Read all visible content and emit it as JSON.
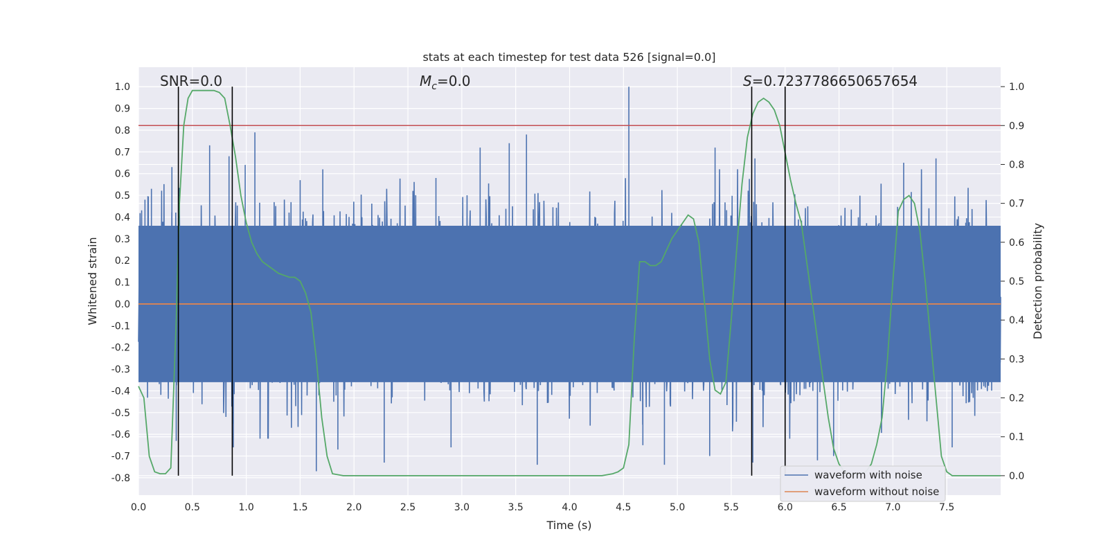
{
  "chart_data": {
    "type": "line",
    "title": "stats at each timestep for test data 526 [signal=0.0]",
    "xlabel": "Time (s)",
    "ylabel": "Whitened strain",
    "y2label": "Detection probability",
    "xlim": [
      0,
      8
    ],
    "ylim": [
      -0.88,
      1.09
    ],
    "y2lim": [
      -0.05,
      1.05
    ],
    "xticks": [
      "0.0",
      "0.5",
      "1.0",
      "1.5",
      "2.0",
      "2.5",
      "3.0",
      "3.5",
      "4.0",
      "4.5",
      "5.0",
      "5.5",
      "6.0",
      "6.5",
      "7.0",
      "7.5"
    ],
    "yticks": [
      "1.0",
      "0.9",
      "0.8",
      "0.7",
      "0.6",
      "0.5",
      "0.4",
      "0.3",
      "0.2",
      "0.1",
      "0.0",
      "-0.1",
      "-0.2",
      "-0.3",
      "-0.4",
      "-0.5",
      "-0.6",
      "-0.7",
      "-0.8"
    ],
    "y2ticks": [
      "1.0",
      "0.9",
      "0.8",
      "0.7",
      "0.6",
      "0.5",
      "0.4",
      "0.3",
      "0.2",
      "0.1",
      "0.0"
    ],
    "grid": true,
    "legend_position": "lower-right",
    "annotations": {
      "snr_label": "SNR=0.0",
      "mc_label_italic": "M",
      "mc_label_sub": "c",
      "mc_label_value": "=0.0",
      "s_label_italic": "S",
      "s_label_value": "=0.7237786650657654"
    },
    "threshold": 0.9,
    "detection_windows": [
      [
        0.37,
        0.87
      ],
      [
        5.69,
        6.0
      ]
    ],
    "series": [
      {
        "name": "waveform with noise",
        "color": "#4c72b0",
        "kind": "noise",
        "envelope_typical": [
          -0.45,
          0.45
        ],
        "spikes": [
          {
            "t": 0.06,
            "y": 0.48
          },
          {
            "t": 0.12,
            "y": 0.53
          },
          {
            "t": 0.31,
            "y": 0.63
          },
          {
            "t": 0.66,
            "y": 0.73
          },
          {
            "t": 0.84,
            "y": 0.68
          },
          {
            "t": 0.99,
            "y": 0.64
          },
          {
            "t": 1.08,
            "y": 0.79
          },
          {
            "t": 1.5,
            "y": 0.57
          },
          {
            "t": 1.71,
            "y": 0.62
          },
          {
            "t": 2.76,
            "y": 0.58
          },
          {
            "t": 3.17,
            "y": 0.72
          },
          {
            "t": 3.44,
            "y": 0.74
          },
          {
            "t": 3.6,
            "y": 0.78
          },
          {
            "t": 4.55,
            "y": 1.0
          },
          {
            "t": 5.35,
            "y": 0.72
          },
          {
            "t": 5.72,
            "y": 0.67
          },
          {
            "t": 7.1,
            "y": 0.65
          },
          {
            "t": 7.4,
            "y": 0.67
          },
          {
            "t": 1.65,
            "y": -0.77
          },
          {
            "t": 1.85,
            "y": -0.67
          },
          {
            "t": 2.28,
            "y": -0.73
          },
          {
            "t": 2.9,
            "y": -0.66
          },
          {
            "t": 3.7,
            "y": -0.74
          },
          {
            "t": 4.68,
            "y": -0.65
          },
          {
            "t": 5.7,
            "y": -0.73
          },
          {
            "t": 6.3,
            "y": -0.72
          },
          {
            "t": 6.45,
            "y": -0.7
          },
          {
            "t": 0.88,
            "y": -0.66
          },
          {
            "t": 0.35,
            "y": -0.63
          },
          {
            "t": 4.88,
            "y": -0.74
          },
          {
            "t": 5.3,
            "y": -0.7
          },
          {
            "t": 7.55,
            "y": -0.66
          },
          {
            "t": 1.2,
            "y": -0.62
          }
        ]
      },
      {
        "name": "waveform without noise",
        "color": "#dd8452",
        "kind": "line",
        "x": [
          0,
          8
        ],
        "y": [
          0,
          0
        ]
      },
      {
        "name": "detection probability",
        "color": "#55a868",
        "kind": "line",
        "axis": "right",
        "x": [
          0.0,
          0.05,
          0.1,
          0.15,
          0.2,
          0.25,
          0.3,
          0.35,
          0.38,
          0.42,
          0.46,
          0.5,
          0.55,
          0.6,
          0.65,
          0.7,
          0.75,
          0.8,
          0.85,
          0.9,
          0.95,
          1.0,
          1.05,
          1.1,
          1.15,
          1.2,
          1.25,
          1.3,
          1.35,
          1.4,
          1.45,
          1.5,
          1.55,
          1.6,
          1.65,
          1.7,
          1.75,
          1.8,
          1.9,
          2.0,
          2.5,
          3.0,
          3.5,
          4.0,
          4.2,
          4.3,
          4.4,
          4.45,
          4.5,
          4.55,
          4.6,
          4.65,
          4.7,
          4.75,
          4.8,
          4.85,
          4.9,
          4.95,
          5.0,
          5.05,
          5.1,
          5.15,
          5.2,
          5.25,
          5.3,
          5.35,
          5.4,
          5.45,
          5.5,
          5.55,
          5.6,
          5.65,
          5.7,
          5.75,
          5.8,
          5.85,
          5.9,
          5.95,
          6.0,
          6.05,
          6.1,
          6.15,
          6.2,
          6.25,
          6.3,
          6.35,
          6.4,
          6.45,
          6.5,
          6.55,
          6.6,
          6.65,
          6.7,
          6.75,
          6.8,
          6.85,
          6.9,
          6.95,
          7.0,
          7.05,
          7.1,
          7.15,
          7.2,
          7.25,
          7.3,
          7.35,
          7.4,
          7.45,
          7.5,
          7.55,
          7.6,
          7.65,
          7.7,
          7.8,
          8.0
        ],
        "y": [
          0.23,
          0.2,
          0.05,
          0.01,
          0.005,
          0.005,
          0.02,
          0.4,
          0.7,
          0.9,
          0.97,
          0.99,
          0.99,
          0.99,
          0.99,
          0.99,
          0.985,
          0.97,
          0.9,
          0.82,
          0.72,
          0.65,
          0.6,
          0.57,
          0.55,
          0.54,
          0.53,
          0.52,
          0.515,
          0.51,
          0.51,
          0.5,
          0.47,
          0.42,
          0.3,
          0.15,
          0.05,
          0.005,
          0.0,
          0.0,
          0.0,
          0.0,
          0.0,
          0.0,
          0.0,
          0.0,
          0.005,
          0.01,
          0.02,
          0.08,
          0.35,
          0.55,
          0.55,
          0.54,
          0.54,
          0.55,
          0.58,
          0.61,
          0.63,
          0.65,
          0.67,
          0.66,
          0.6,
          0.45,
          0.3,
          0.22,
          0.21,
          0.24,
          0.4,
          0.58,
          0.75,
          0.87,
          0.93,
          0.96,
          0.97,
          0.96,
          0.94,
          0.9,
          0.83,
          0.76,
          0.7,
          0.65,
          0.55,
          0.45,
          0.35,
          0.25,
          0.15,
          0.07,
          0.03,
          0.01,
          0.005,
          0.005,
          0.005,
          0.01,
          0.03,
          0.08,
          0.15,
          0.3,
          0.5,
          0.68,
          0.71,
          0.72,
          0.7,
          0.63,
          0.5,
          0.35,
          0.2,
          0.05,
          0.01,
          0.0,
          0.0,
          0.0,
          0.0,
          0.0,
          0.0
        ]
      }
    ]
  }
}
